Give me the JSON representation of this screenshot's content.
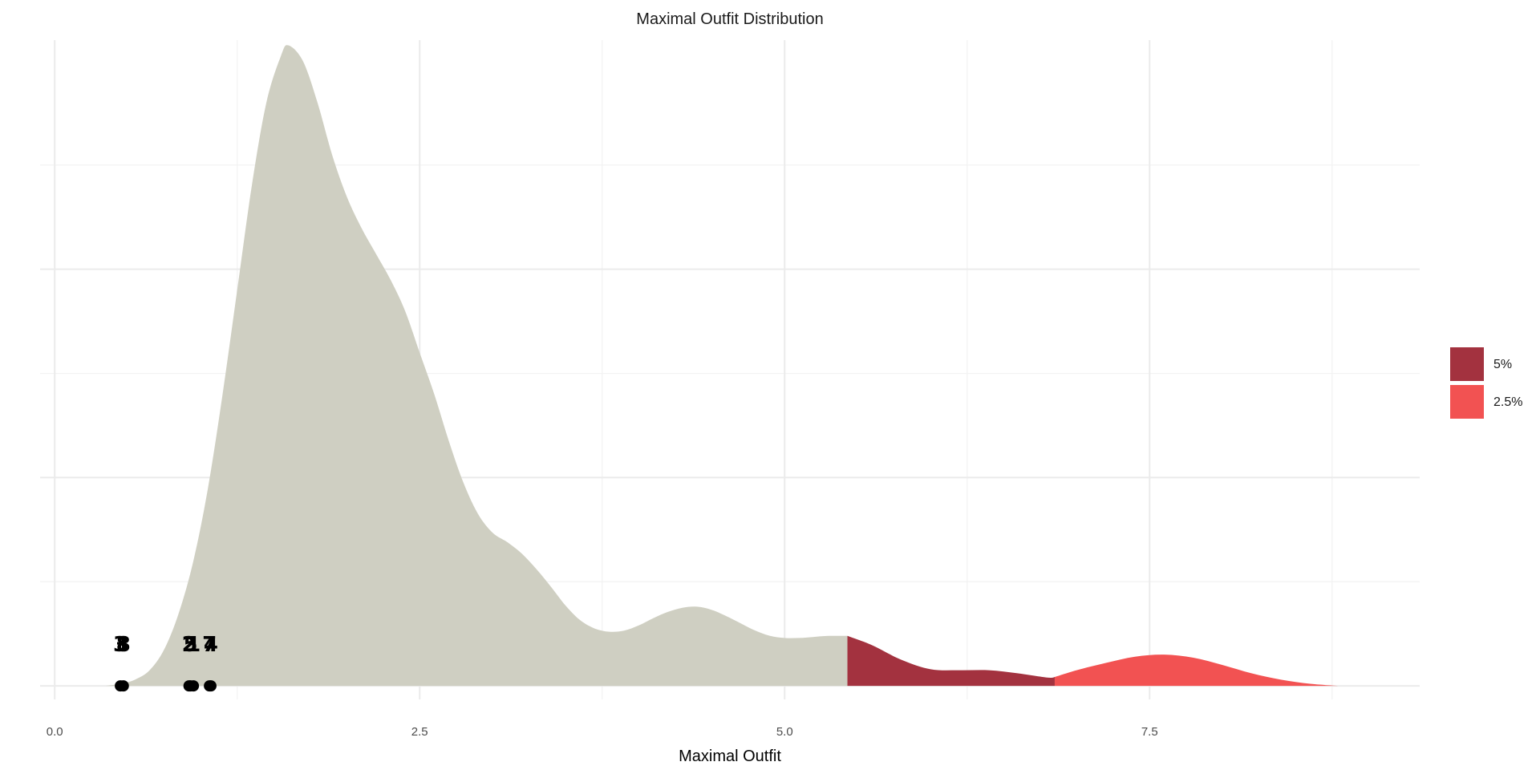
{
  "chart_data": {
    "type": "area",
    "title": "Maximal Outfit Distribution",
    "xlabel": "Maximal Outfit",
    "ylabel": "",
    "xlim": [
      -0.1,
      9.35
    ],
    "ylim": [
      -0.013,
      0.62
    ],
    "x_ticks": [
      0.0,
      2.5,
      5.0,
      7.5
    ],
    "x_tick_labels": [
      "0.0",
      "2.5",
      "5.0",
      "7.5"
    ],
    "y_ticks": [
      0.0,
      0.2,
      0.4
    ],
    "y_minor_ticks": [
      0.1,
      0.3,
      0.5
    ],
    "y_tick_labels_visible": false,
    "grid": true,
    "legend": {
      "placement": "right",
      "entries": [
        {
          "label": "5%",
          "color": "#a3323f"
        },
        {
          "label": "2.5%",
          "color": "#f25252"
        }
      ]
    },
    "regions": [
      {
        "name": "body",
        "from": 0.35,
        "to": 5.43,
        "color": "#cfcfc2"
      },
      {
        "name": "5%",
        "from": 5.43,
        "to": 6.85,
        "color": "#a3323f"
      },
      {
        "name": "2.5%",
        "from": 6.85,
        "to": 8.8,
        "color": "#f25252"
      }
    ],
    "density": {
      "x": [
        0.35,
        0.45,
        0.55,
        0.65,
        0.75,
        0.85,
        0.95,
        1.05,
        1.15,
        1.25,
        1.35,
        1.45,
        1.55,
        1.6,
        1.7,
        1.8,
        1.9,
        2.0,
        2.1,
        2.2,
        2.3,
        2.4,
        2.5,
        2.6,
        2.7,
        2.8,
        2.9,
        3.0,
        3.1,
        3.2,
        3.3,
        3.4,
        3.5,
        3.6,
        3.7,
        3.8,
        3.9,
        4.0,
        4.1,
        4.2,
        4.3,
        4.4,
        4.5,
        4.6,
        4.7,
        4.8,
        4.9,
        5.0,
        5.1,
        5.2,
        5.3,
        5.43,
        5.6,
        5.8,
        6.0,
        6.2,
        6.4,
        6.6,
        6.8,
        6.85,
        7.0,
        7.2,
        7.4,
        7.6,
        7.8,
        8.0,
        8.2,
        8.4,
        8.6,
        8.8
      ],
      "y": [
        0.0,
        0.002,
        0.006,
        0.015,
        0.035,
        0.07,
        0.12,
        0.19,
        0.28,
        0.38,
        0.48,
        0.56,
        0.605,
        0.615,
        0.6,
        0.56,
        0.51,
        0.47,
        0.44,
        0.415,
        0.39,
        0.36,
        0.32,
        0.28,
        0.235,
        0.195,
        0.165,
        0.147,
        0.138,
        0.127,
        0.112,
        0.095,
        0.077,
        0.063,
        0.055,
        0.052,
        0.053,
        0.058,
        0.065,
        0.071,
        0.075,
        0.076,
        0.073,
        0.067,
        0.06,
        0.053,
        0.048,
        0.046,
        0.046,
        0.047,
        0.048,
        0.048,
        0.039,
        0.025,
        0.016,
        0.015,
        0.015,
        0.012,
        0.008,
        0.0085,
        0.015,
        0.022,
        0.028,
        0.03,
        0.027,
        0.02,
        0.012,
        0.006,
        0.002,
        0.0
      ]
    },
    "observations": [
      {
        "label": "3",
        "x": 0.45
      },
      {
        "label": "8",
        "x": 0.47
      },
      {
        "label": "2",
        "x": 0.92
      },
      {
        "label": "5",
        "x": 0.93
      },
      {
        "label": "1",
        "x": 0.95
      },
      {
        "label": "7",
        "x": 1.06
      },
      {
        "label": "4",
        "x": 1.07
      }
    ]
  }
}
